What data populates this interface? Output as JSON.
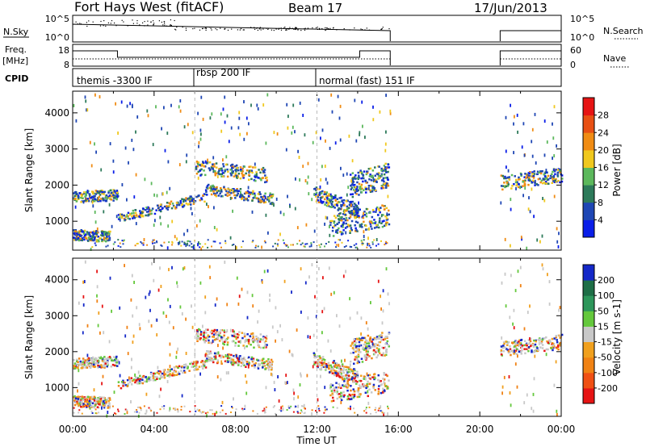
{
  "header": {
    "title": "Fort Hays West (fitACF)",
    "beam": "Beam 17",
    "date": "17/Jun/2013"
  },
  "scan_panel": {
    "nsky_label": "N.Sky",
    "nsearch_label": "N.Search",
    "left_ticks": [
      "10^5",
      "10^0"
    ],
    "right_ticks": [
      "10^5",
      "10^0"
    ]
  },
  "freq_panel": {
    "freq_label": "Freq.",
    "unit_label": "[MHz]",
    "left_ticks": [
      "18",
      "8"
    ],
    "right_ticks": [
      "60",
      "0"
    ],
    "nave_label": "Nave"
  },
  "cpid": {
    "label": "CPID",
    "segments": [
      "themis -3300 IF",
      "rbsp 200 IF",
      "normal (fast) 151 IF"
    ]
  },
  "chart_data": [
    {
      "type": "heatmap",
      "parameter": "Power",
      "ylabel": "Slant Range [km]",
      "yticks": [
        1000,
        2000,
        3000,
        4000
      ],
      "ylim": [
        200,
        4600
      ],
      "xlim_hours": [
        0,
        24
      ],
      "colorbar": {
        "label": "Power [dB]",
        "ticks": [
          4,
          8,
          12,
          16,
          20,
          24,
          28
        ],
        "colors": [
          "#0a1ee8",
          "#1e46b4",
          "#2d7a5a",
          "#5cb85c",
          "#f0c81e",
          "#f08c14",
          "#e85014",
          "#e61414"
        ]
      }
    },
    {
      "type": "heatmap",
      "parameter": "Velocity",
      "ylabel": "Slant Range [km]",
      "yticks": [
        1000,
        2000,
        3000,
        4000
      ],
      "ylim": [
        200,
        4600
      ],
      "xlim_hours": [
        0,
        24
      ],
      "xticks": [
        "00:00",
        "04:00",
        "08:00",
        "12:00",
        "16:00",
        "20:00",
        "00:00"
      ],
      "xlabel": "Time UT",
      "colorbar": {
        "label": "Velocity [m s-1]",
        "ticks": [
          "200",
          "100",
          "50",
          "15",
          "-15",
          "-50",
          "-100",
          "-200"
        ],
        "colors": [
          "#1428c8",
          "#1e6e46",
          "#2d965a",
          "#64c83c",
          "#c8c8c8",
          "#f0a01e",
          "#f08214",
          "#f05014",
          "#e61414"
        ]
      }
    }
  ]
}
